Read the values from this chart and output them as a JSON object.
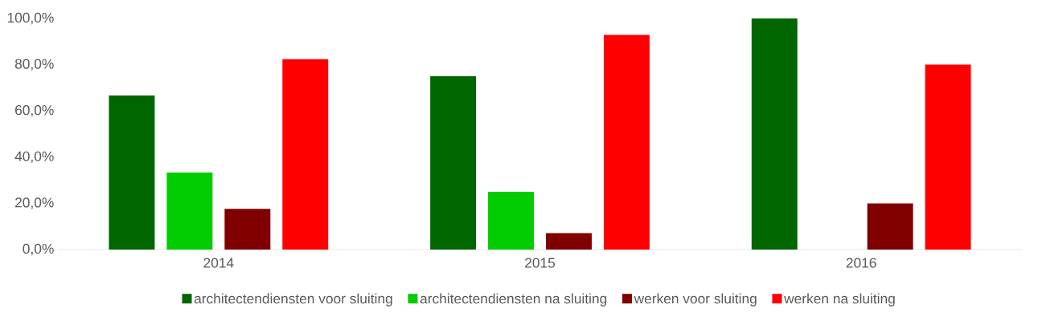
{
  "chart_data": {
    "type": "bar",
    "categories": [
      "2014",
      "2015",
      "2016"
    ],
    "series": [
      {
        "name": "architectendiensten voor sluiting",
        "color": "#006600",
        "values": [
          66.7,
          75.0,
          100.0
        ]
      },
      {
        "name": "architectendiensten na sluiting",
        "color": "#00cc00",
        "values": [
          33.3,
          25.0,
          0
        ]
      },
      {
        "name": "werken voor sluiting",
        "color": "#800000",
        "values": [
          17.6,
          7.1,
          20.0
        ]
      },
      {
        "name": "werken na sluiting",
        "color": "#ff0000",
        "values": [
          82.4,
          92.9,
          80.0
        ]
      }
    ],
    "ylim": [
      0,
      100
    ],
    "yticks": [
      {
        "value": 0,
        "label": "0,0%"
      },
      {
        "value": 20,
        "label": "20,0%"
      },
      {
        "value": 40,
        "label": "40,0%"
      },
      {
        "value": 60,
        "label": "60,0%"
      },
      {
        "value": 80,
        "label": "80,0%"
      },
      {
        "value": 100,
        "label": "100,0%"
      }
    ],
    "legend": "bottom"
  }
}
